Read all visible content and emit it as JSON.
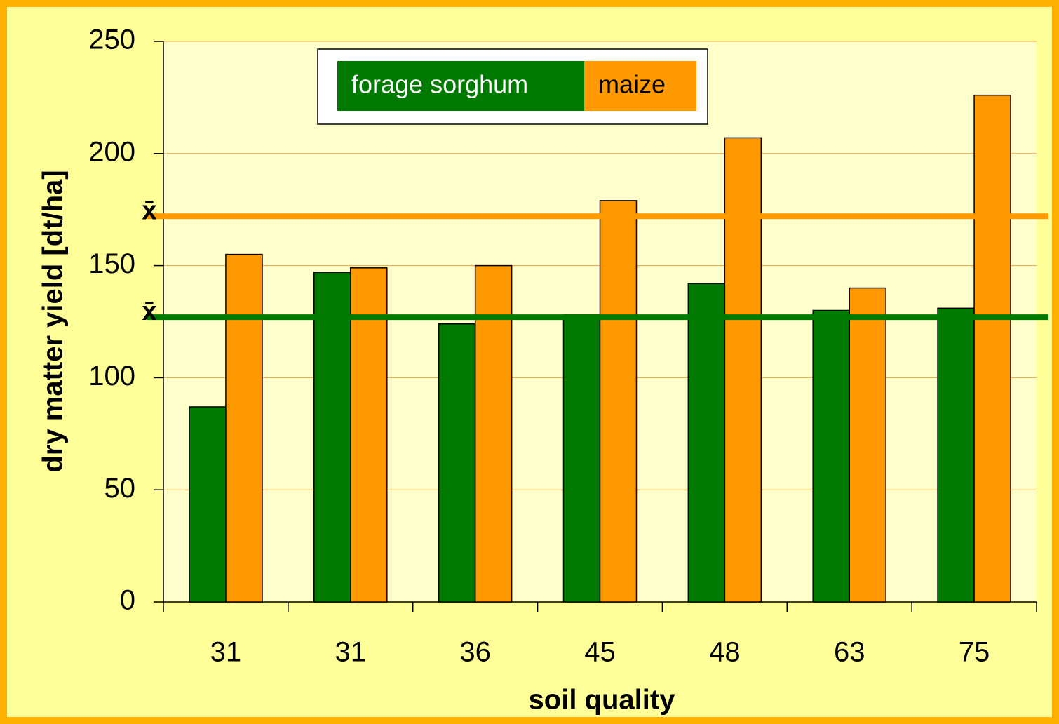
{
  "chart_data": {
    "type": "bar",
    "x_label": "soil quality",
    "y_label": "dry matter yield [dt/ha]",
    "categories": [
      "31",
      "31",
      "36",
      "45",
      "48",
      "63",
      "75"
    ],
    "series": [
      {
        "name": "forage sorghum",
        "color": "#007a00",
        "values": [
          87,
          147,
          124,
          128,
          142,
          130,
          131
        ]
      },
      {
        "name": "maize",
        "color": "#ff9900",
        "values": [
          155,
          149,
          150,
          179,
          207,
          140,
          226
        ]
      }
    ],
    "mean_lines": [
      {
        "label": "x̄",
        "value": 172,
        "color": "#ff9900"
      },
      {
        "label": "x̄",
        "value": 127,
        "color": "#007a00"
      }
    ],
    "ylim": [
      0,
      250
    ],
    "yticks": [
      0,
      50,
      100,
      150,
      200,
      250
    ],
    "grid": true
  }
}
